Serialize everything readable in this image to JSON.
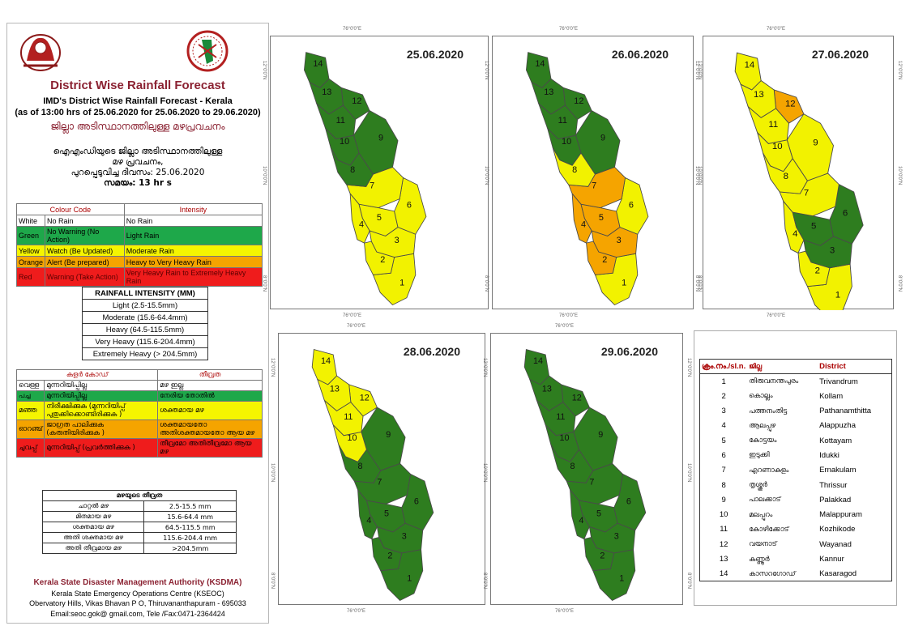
{
  "title": "District Wise Rainfall Forecast",
  "subtitle_line1": "IMD's District Wise Rainfall Forecast - Kerala",
  "subtitle_line2": "(as of 13:00 hrs of 25.06.2020  for 25.06.2020  to 29.06.2020)",
  "ml_title": "ജില്ലാ അടിസ്ഥാനത്തിലുള്ള മഴപ്രവചനം",
  "ml_issue_lines": [
    "ഐഎംഡിയുടെ ജില്ലാ  അടിസ്ഥാനത്തിലുള്ള",
    "മഴ പ്രവചനം,",
    "പുറപ്പെടുവിച്ച    ദിവസം: 25.06.2020",
    "സമയം: 13 hr s"
  ],
  "colour_code_table": {
    "headers": [
      "Colour Code",
      "Intensity"
    ],
    "rows": [
      {
        "colour": "White",
        "action": "No Rain",
        "intensity": "No Rain",
        "bg": "#ffffff",
        "fg": "#000000"
      },
      {
        "colour": "Green",
        "action": "No Warning (No Action)",
        "intensity": "Light Rain",
        "bg": "#1ea84a",
        "fg": "#000000"
      },
      {
        "colour": "Yellow",
        "action": "Watch (Be Updated)",
        "intensity": "Moderate Rain",
        "bg": "#f5f500",
        "fg": "#000000"
      },
      {
        "colour": "Orange",
        "action": "Alert (Be prepared)",
        "intensity": "Heavy to Very Heavy Rain",
        "bg": "#f5a400",
        "fg": "#000000"
      },
      {
        "colour": "Red",
        "action": "Warning (Take Action)",
        "intensity": "Very Heavy Rain to Extremely Heavy Rain",
        "bg": "#ef1c1c",
        "fg": "#5a0000"
      }
    ]
  },
  "rainfall_intensity": {
    "header": "RAINFALL INTENSITY (MM)",
    "rows": [
      "Light (2.5-15.5mm)",
      "Moderate (15.6-64.4mm)",
      "Heavy (64.5-115.5mm)",
      "Very Heavy (115.6-204.4mm)",
      "Extremely Heavy (> 204.5mm)"
    ]
  },
  "ml_colour_code_table": {
    "headers": [
      "കളർ കോഡ്",
      "തീവ്രത"
    ],
    "rows": [
      {
        "colour": "വെള്ള",
        "action": "മുന്നറിയിപ്പില്ല",
        "intensity": "മഴ ഇല്ല",
        "bg": "#ffffff"
      },
      {
        "colour": "പച്ച",
        "action": "മുന്നറിയിപ്പില്ല",
        "intensity": "നേരിയ തോതിൽ",
        "bg": "#1ea84a"
      },
      {
        "colour": "മഞ്ഞ",
        "action": "നിരീക്ഷിക്കുക (മുന്നറിയിപ്പ് പുതുക്കിക്കൊണ്ടിരിക്കുക )",
        "intensity": "ശക്തമായ മഴ",
        "bg": "#f5f500"
      },
      {
        "colour": "ഓറഞ്ച്",
        "action": "ജാഗ്രത പാലിക്കുക (കരുതിയിരിക്കുക )",
        "intensity": "ശക്തമായതോ അതിശക്തമായതോ ആയ മഴ",
        "bg": "#f5a400"
      },
      {
        "colour": "ചുവപ്പ്",
        "action": "മുന്നറിയിപ്പ് (പ്രവർത്തിക്കുക )",
        "intensity": "തീവ്രമോ അതിതീവ്രമോ ആയ മഴ",
        "bg": "#ef1c1c"
      }
    ]
  },
  "ml_rainfall_intensity": {
    "header": "മഴയുടെ  തീവ്രത",
    "rows": [
      [
        "ചാറ്റൽ  മഴ",
        "2.5-15.5 mm"
      ],
      [
        "മിതമായ  മഴ",
        "15.6-64.4 mm"
      ],
      [
        "ശക്തമായ  മഴ",
        "64.5-115.5 mm"
      ],
      [
        "അതി  ശക്തമായ  മഴ",
        "115.6-204.4 mm"
      ],
      [
        "അതി  തീവ്രമായ  മഴ",
        ">204.5mm"
      ]
    ]
  },
  "footer": {
    "org": "Kerala State Disaster Management Authority (KSDMA)",
    "line2": "Kerala State Emergency Operations Centre (KSEOC)",
    "line3": "Obervatory Hills, Vikas Bhavan P O, Thiruvananthapuram - 695033",
    "line4": "Email:seoc.gok@ gmail.com, Tele /Fax:0471-2364424"
  },
  "ticks": {
    "top": "76°0'0\"E",
    "bottom": "76°0'0\"E",
    "left_upper": "12°0'0\"N",
    "left_mid": "10°0'0\"N",
    "left_lower": "8°0'0\"N"
  },
  "maps": [
    {
      "date": "25.06.2020",
      "colors": {
        "1": "#f2f200",
        "2": "#f2f200",
        "3": "#f2f200",
        "4": "#f2f200",
        "5": "#f2f200",
        "6": "#f2f200",
        "7": "#f2f200",
        "8": "#2e7d1f",
        "9": "#2e7d1f",
        "10": "#2e7d1f",
        "11": "#2e7d1f",
        "12": "#2e7d1f",
        "13": "#2e7d1f",
        "14": "#2e7d1f"
      }
    },
    {
      "date": "26.06.2020",
      "colors": {
        "1": "#f2f200",
        "2": "#f5a400",
        "3": "#f5a400",
        "4": "#f5a400",
        "5": "#f5a400",
        "6": "#f2f200",
        "7": "#f5a400",
        "8": "#f2f200",
        "9": "#2e7d1f",
        "10": "#2e7d1f",
        "11": "#2e7d1f",
        "12": "#2e7d1f",
        "13": "#2e7d1f",
        "14": "#2e7d1f"
      }
    },
    {
      "date": "27.06.2020",
      "colors": {
        "1": "#f2f200",
        "2": "#f2f200",
        "3": "#2e7d1f",
        "4": "#f2f200",
        "5": "#2e7d1f",
        "6": "#2e7d1f",
        "7": "#f2f200",
        "8": "#f2f200",
        "9": "#f2f200",
        "10": "#f2f200",
        "11": "#f2f200",
        "12": "#f5a400",
        "13": "#f2f200",
        "14": "#f2f200"
      }
    },
    {
      "date": "28.06.2020",
      "colors": {
        "1": "#2e7d1f",
        "2": "#2e7d1f",
        "3": "#2e7d1f",
        "4": "#2e7d1f",
        "5": "#2e7d1f",
        "6": "#2e7d1f",
        "7": "#2e7d1f",
        "8": "#2e7d1f",
        "9": "#2e7d1f",
        "10": "#f2f200",
        "11": "#f2f200",
        "12": "#f2f200",
        "13": "#f2f200",
        "14": "#f2f200"
      }
    },
    {
      "date": "29.06.2020",
      "colors": {
        "1": "#2e7d1f",
        "2": "#2e7d1f",
        "3": "#2e7d1f",
        "4": "#2e7d1f",
        "5": "#2e7d1f",
        "6": "#2e7d1f",
        "7": "#2e7d1f",
        "8": "#2e7d1f",
        "9": "#2e7d1f",
        "10": "#2e7d1f",
        "11": "#2e7d1f",
        "12": "#2e7d1f",
        "13": "#2e7d1f",
        "14": "#2e7d1f"
      }
    }
  ],
  "district_table": {
    "headers": [
      "ക്രം.നം./sl.n.",
      "ജില്ല",
      "District"
    ],
    "rows": [
      [
        "1",
        "തിരുവനന്തപുരം",
        "Trivandrum"
      ],
      [
        "2",
        "കൊല്ലം",
        "Kollam"
      ],
      [
        "3",
        "പത്തനംതിട്ട",
        "Pathanamthitta"
      ],
      [
        "4",
        "ആലപ്പുഴ",
        "Alappuzha"
      ],
      [
        "5",
        "കോട്ടയം",
        "Kottayam"
      ],
      [
        "6",
        "ഇടുക്കി",
        "Idukki"
      ],
      [
        "7",
        "എറണാകുളം",
        "Ernakulam"
      ],
      [
        "8",
        "തൃശ്ശൂർ",
        "Thrissur"
      ],
      [
        "9",
        "പാലക്കാട്",
        "Palakkad"
      ],
      [
        "10",
        "മലപ്പുറം",
        "Malappuram"
      ],
      [
        "11",
        "കോഴിക്കോട്",
        "Kozhikode"
      ],
      [
        "12",
        "വയനാട്",
        "Wayanad"
      ],
      [
        "13",
        "കണ്ണൂർ",
        "Kannur"
      ],
      [
        "14",
        "കാസറഗോഡ്",
        "Kasaragod"
      ]
    ]
  }
}
